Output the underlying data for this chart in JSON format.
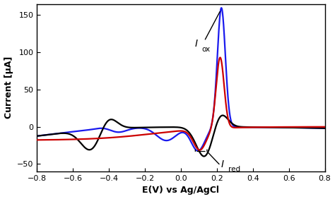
{
  "title": "",
  "xlabel": "E(V) vs Ag/AgCl",
  "ylabel": "Current [μA]",
  "xlim": [
    -0.8,
    0.8
  ],
  "ylim": [
    -60,
    165
  ],
  "yticks": [
    -50,
    0,
    50,
    100,
    150
  ],
  "xticks": [
    -0.8,
    -0.6,
    -0.4,
    -0.2,
    0.0,
    0.2,
    0.4,
    0.6,
    0.8
  ],
  "black_color": "#000000",
  "blue_color": "#1a1aee",
  "red_color": "#cc0000",
  "background_color": "#ffffff",
  "linewidth": 1.6
}
